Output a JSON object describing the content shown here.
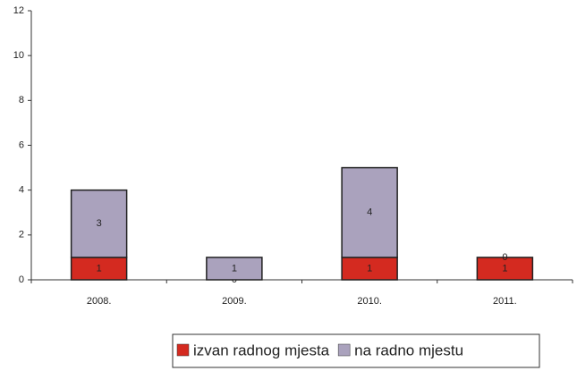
{
  "chart_data": {
    "type": "bar",
    "stacked": true,
    "categories": [
      "2008.",
      "2009.",
      "2010.",
      "2011."
    ],
    "series": [
      {
        "name": "izvan radnog mjesta",
        "color": "#d42a20",
        "values": [
          1,
          0,
          1,
          1
        ]
      },
      {
        "name": "na radno mjestu",
        "color": "#aaa2bd",
        "values": [
          3,
          1,
          4,
          0
        ]
      }
    ],
    "ylim": [
      0,
      12
    ],
    "yticks": [
      0,
      2,
      4,
      6,
      8,
      10,
      12
    ],
    "grid": false,
    "legend": "bottom"
  }
}
